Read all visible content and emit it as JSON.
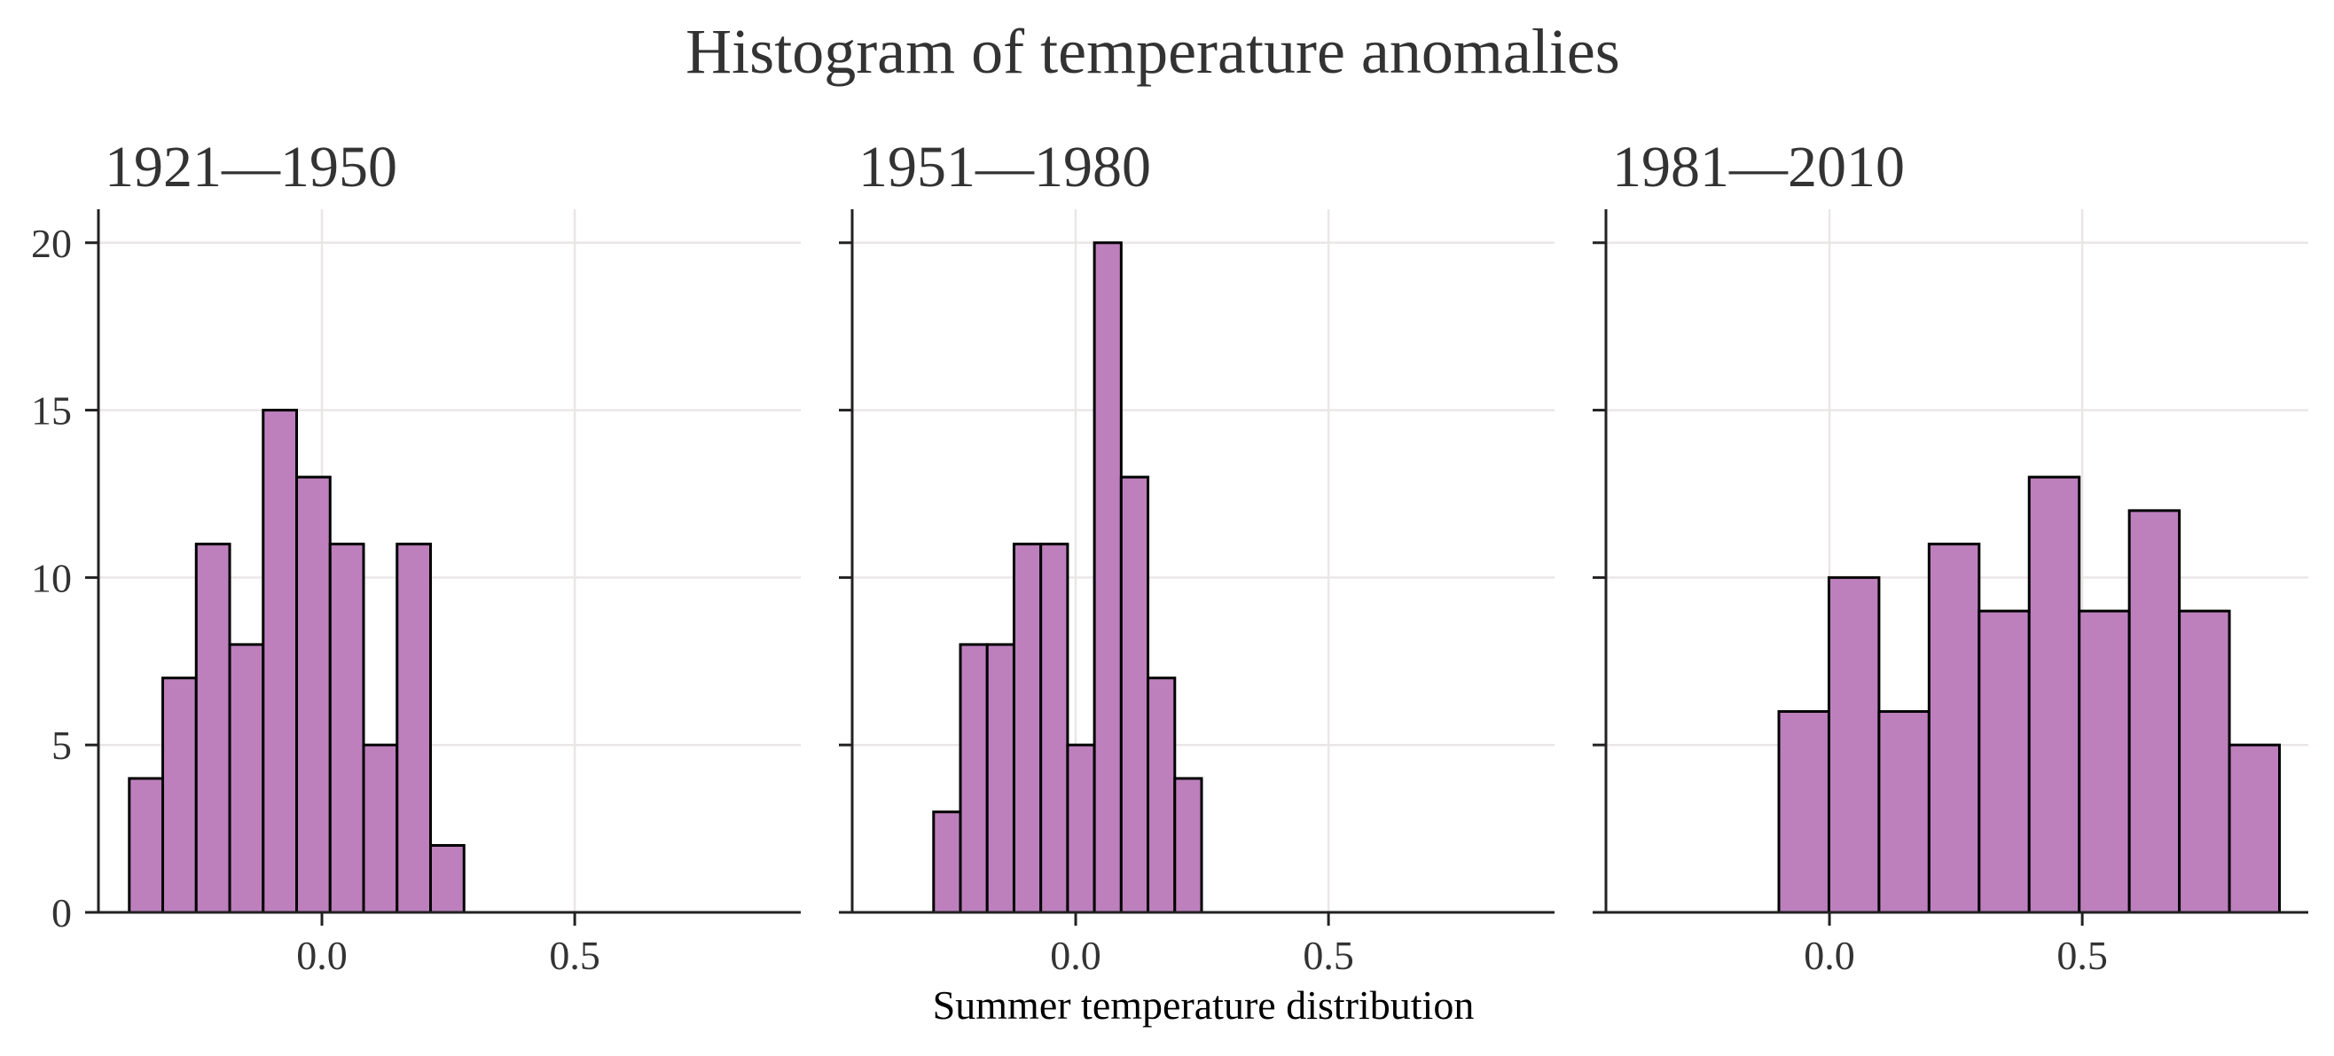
{
  "chart_data": {
    "type": "bar",
    "title": "Histogram of temperature anomalies",
    "xlabel": "Summer temperature distribution",
    "ylabel": "",
    "grid": true,
    "colors": {
      "bar_fill": "#bd80bd",
      "bar_edge": "#000000",
      "grid": "#ebe6e6",
      "axis": "#222222",
      "text": "#333333"
    },
    "ylim": [
      0,
      21
    ],
    "xlim": [
      -0.442,
      0.947
    ],
    "yticks": [
      0,
      5,
      10,
      15,
      20
    ],
    "ytick_labels": [
      "0",
      "5",
      "10",
      "15",
      "20"
    ],
    "xticks": [
      0.0,
      0.5
    ],
    "xtick_labels": [
      "0.0",
      "0.5"
    ],
    "panels": [
      {
        "title": "1921—1950",
        "bin_start": -0.381,
        "bin_width": 0.0662,
        "counts": [
          4,
          7,
          11,
          8,
          15,
          13,
          11,
          5,
          11,
          2
        ]
      },
      {
        "title": "1951—1980",
        "bin_start": -0.281,
        "bin_width": 0.053,
        "counts": [
          3,
          8,
          8,
          11,
          11,
          5,
          20,
          13,
          7,
          4
        ]
      },
      {
        "title": "1981—2010",
        "bin_start": -0.1,
        "bin_width": 0.099,
        "counts": [
          6,
          10,
          6,
          11,
          9,
          13,
          9,
          12,
          9,
          5
        ]
      }
    ]
  }
}
